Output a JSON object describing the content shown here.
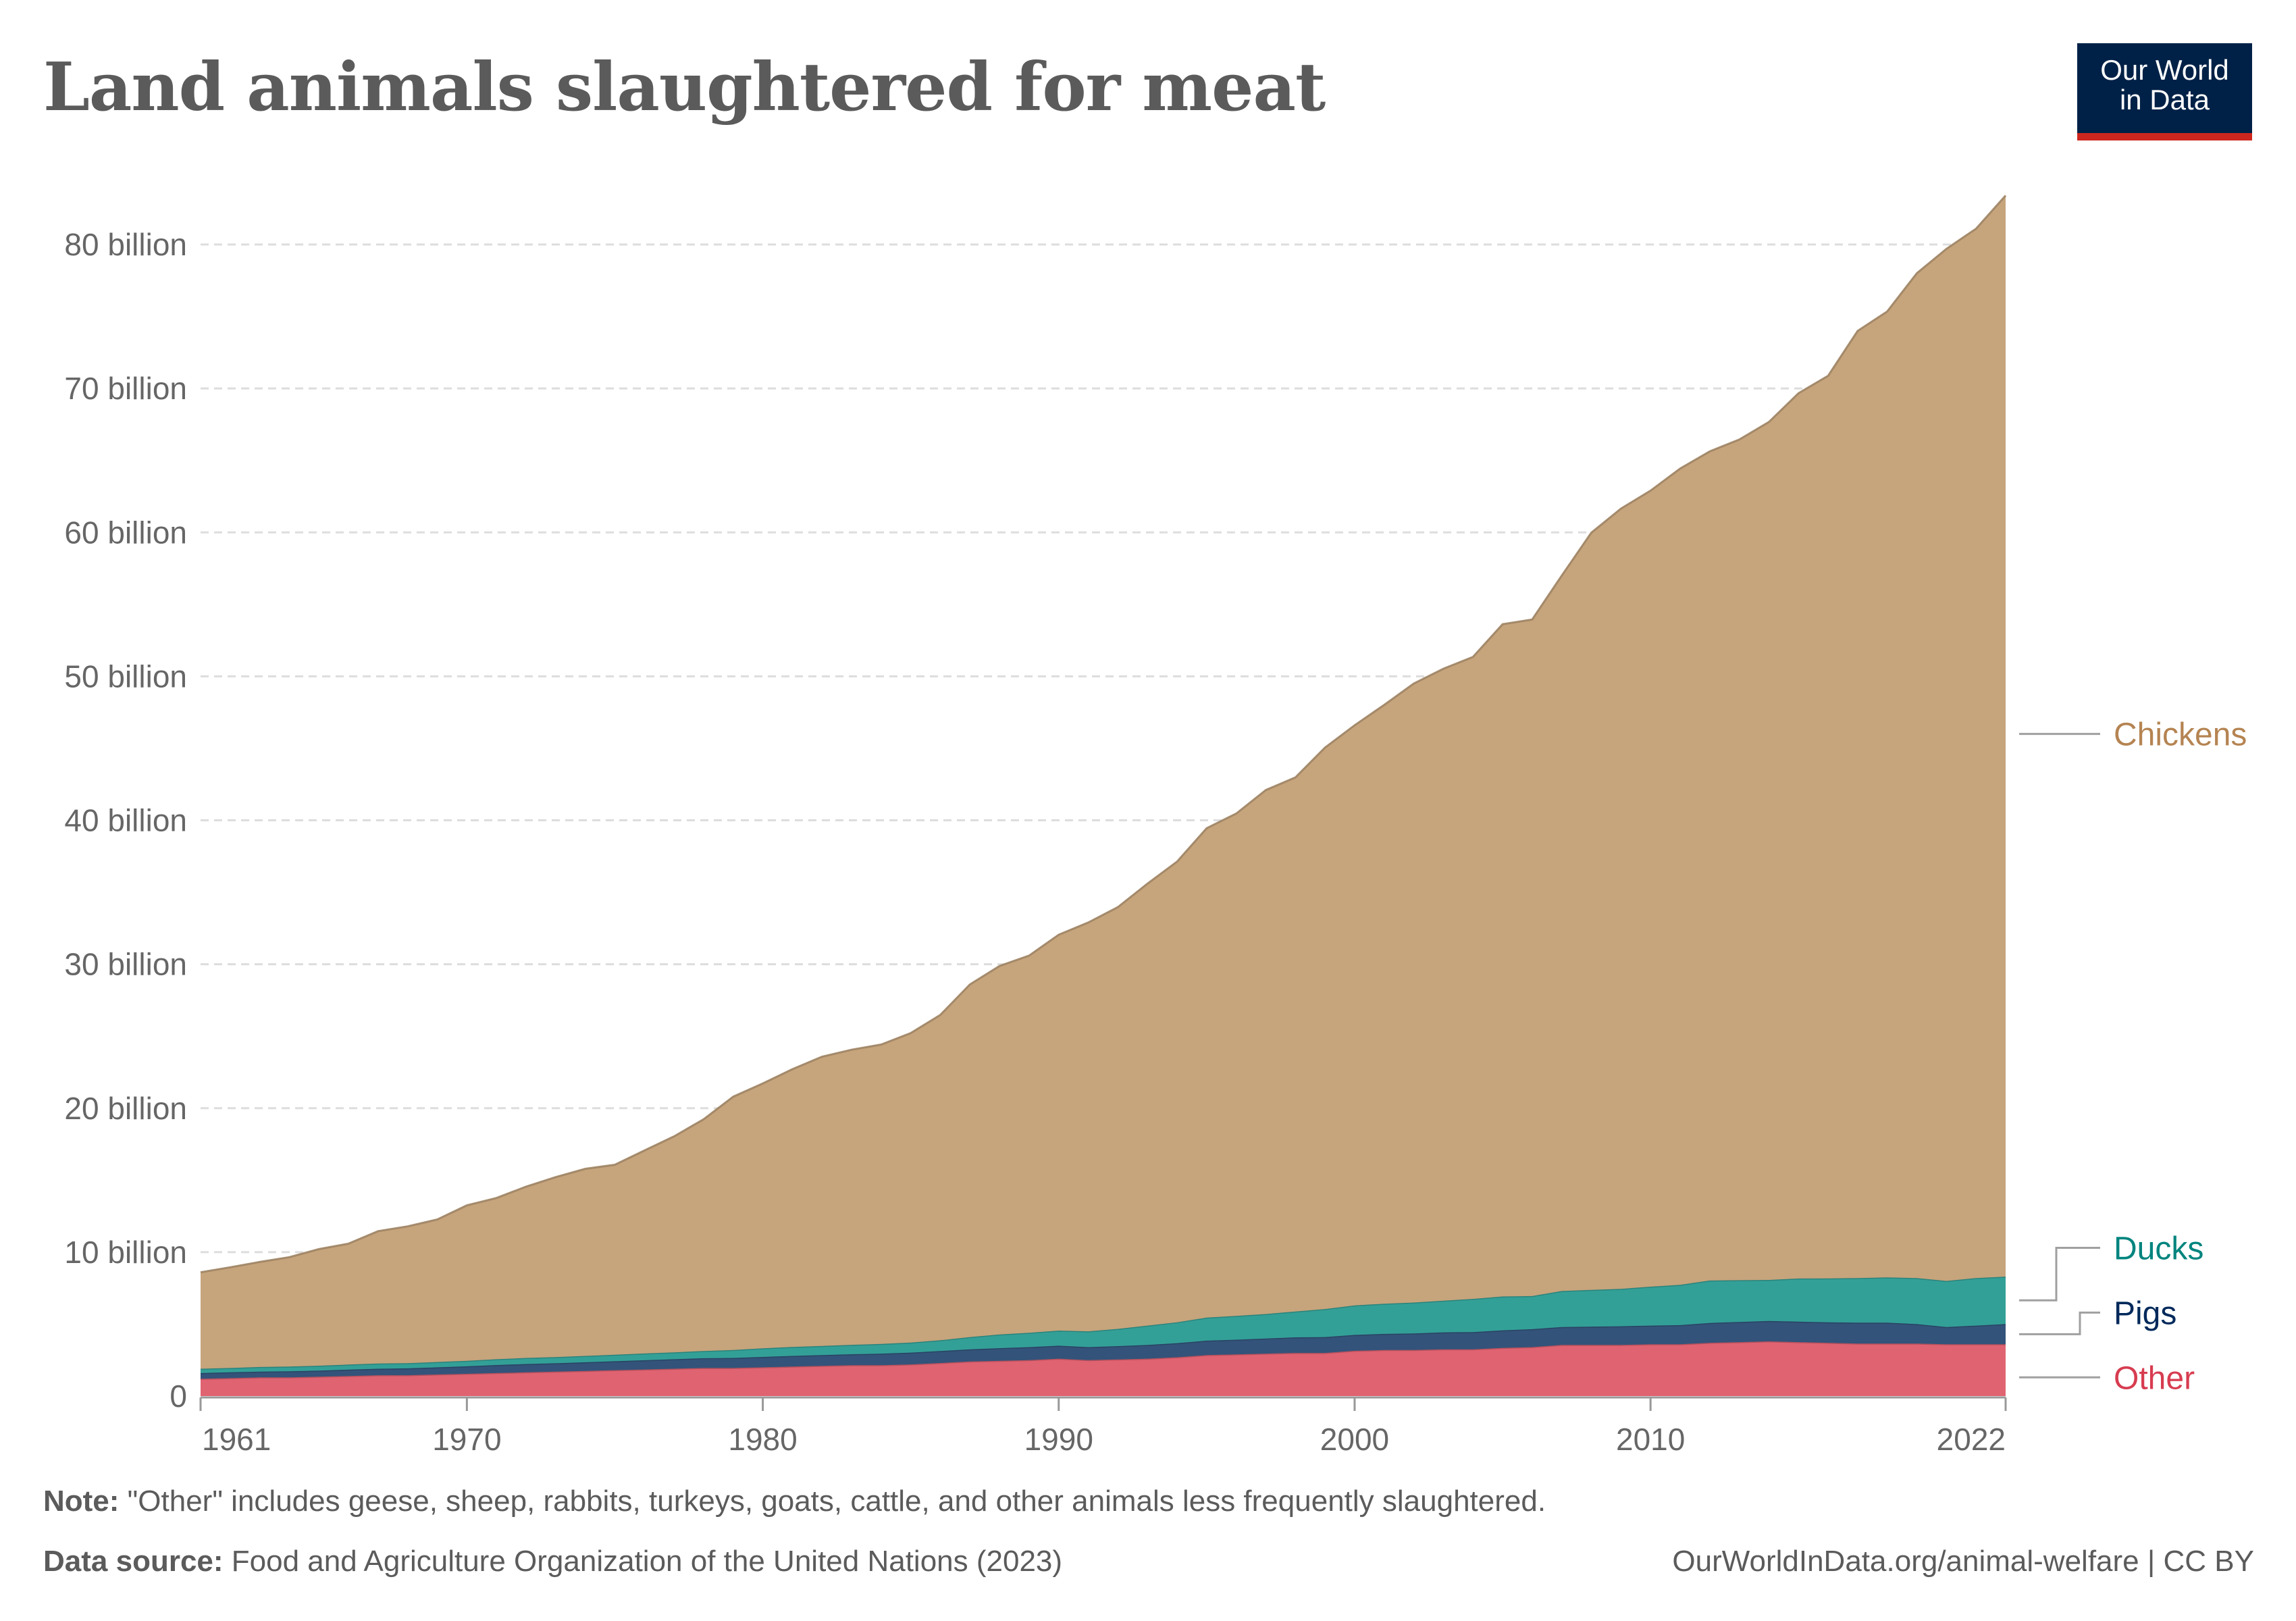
{
  "title": "Land animals slaughtered for meat",
  "logo": {
    "line1": "Our World",
    "line2": "in Data",
    "bg_color": "#002147",
    "accent_color": "#ce261e"
  },
  "footer": {
    "note_label": "Note:",
    "note_text": " \"Other\" includes geese, sheep, rabbits, turkeys, goats, cattle, and other animals less frequently slaughtered.",
    "source_label": "Data source:",
    "source_text": " Food and Agriculture Organization of the United Nations (2023)",
    "url": "OurWorldInData.org/animal-welfare | CC BY"
  },
  "chart_data": {
    "type": "area",
    "stacked": true,
    "title": "Land animals slaughtered for meat",
    "xlabel": "",
    "ylabel": "",
    "x_range": [
      1961,
      2022
    ],
    "ylim": [
      0,
      80000000000
    ],
    "y_ticks": [
      {
        "value": 0,
        "label": "0"
      },
      {
        "value": 10,
        "label": "10 billion"
      },
      {
        "value": 20,
        "label": "20 billion"
      },
      {
        "value": 30,
        "label": "30 billion"
      },
      {
        "value": 40,
        "label": "40 billion"
      },
      {
        "value": 50,
        "label": "50 billion"
      },
      {
        "value": 60,
        "label": "60 billion"
      },
      {
        "value": 70,
        "label": "70 billion"
      },
      {
        "value": 80,
        "label": "80 billion"
      }
    ],
    "y_unit": "billion",
    "x_ticks": [
      1961,
      1970,
      1980,
      1990,
      2000,
      2010,
      2022
    ],
    "grid": "horizontal-dashed",
    "legend": "right-inline",
    "years": [
      1961,
      1962,
      1963,
      1964,
      1965,
      1966,
      1967,
      1968,
      1969,
      1970,
      1971,
      1972,
      1973,
      1974,
      1975,
      1976,
      1977,
      1978,
      1979,
      1980,
      1981,
      1982,
      1983,
      1984,
      1985,
      1986,
      1987,
      1988,
      1989,
      1990,
      1991,
      1992,
      1993,
      1994,
      1995,
      1996,
      1997,
      1998,
      1999,
      2000,
      2001,
      2002,
      2003,
      2004,
      2005,
      2006,
      2007,
      2008,
      2009,
      2010,
      2011,
      2012,
      2013,
      2014,
      2015,
      2016,
      2017,
      2018,
      2019,
      2020,
      2021,
      2022
    ],
    "series": [
      {
        "name": "Other",
        "color": "#e06371",
        "label_color": "#d73c50",
        "values": [
          1.2,
          1.25,
          1.3,
          1.3,
          1.35,
          1.4,
          1.45,
          1.45,
          1.5,
          1.55,
          1.6,
          1.65,
          1.7,
          1.75,
          1.8,
          1.85,
          1.9,
          1.95,
          1.95,
          2.0,
          2.05,
          2.1,
          2.15,
          2.15,
          2.2,
          2.3,
          2.4,
          2.45,
          2.5,
          2.6,
          2.5,
          2.55,
          2.6,
          2.7,
          2.85,
          2.9,
          2.95,
          3.0,
          3.0,
          3.15,
          3.2,
          3.2,
          3.25,
          3.25,
          3.35,
          3.4,
          3.55,
          3.55,
          3.55,
          3.6,
          3.6,
          3.7,
          3.75,
          3.8,
          3.75,
          3.7,
          3.65,
          3.65,
          3.65,
          3.6,
          3.6,
          3.6
        ]
      },
      {
        "name": "Pigs",
        "color": "#33537a",
        "label_color": "#00295b",
        "values": [
          0.4,
          0.4,
          0.4,
          0.42,
          0.42,
          0.44,
          0.45,
          0.48,
          0.5,
          0.52,
          0.56,
          0.58,
          0.58,
          0.6,
          0.62,
          0.64,
          0.66,
          0.68,
          0.7,
          0.72,
          0.74,
          0.75,
          0.76,
          0.8,
          0.82,
          0.83,
          0.85,
          0.88,
          0.9,
          0.9,
          0.9,
          0.92,
          0.95,
          0.98,
          1.0,
          1.02,
          1.05,
          1.08,
          1.1,
          1.1,
          1.12,
          1.15,
          1.18,
          1.2,
          1.22,
          1.25,
          1.25,
          1.28,
          1.3,
          1.3,
          1.33,
          1.38,
          1.4,
          1.42,
          1.42,
          1.43,
          1.45,
          1.45,
          1.35,
          1.2,
          1.3,
          1.4
        ]
      },
      {
        "name": "Ducks",
        "color": "#33a097",
        "label_color": "#00847e",
        "values": [
          0.3,
          0.3,
          0.32,
          0.33,
          0.34,
          0.35,
          0.36,
          0.36,
          0.37,
          0.38,
          0.4,
          0.42,
          0.43,
          0.44,
          0.45,
          0.47,
          0.48,
          0.5,
          0.55,
          0.6,
          0.62,
          0.63,
          0.65,
          0.67,
          0.7,
          0.75,
          0.85,
          0.95,
          1.0,
          1.05,
          1.1,
          1.2,
          1.35,
          1.45,
          1.6,
          1.65,
          1.7,
          1.8,
          1.95,
          2.05,
          2.1,
          2.15,
          2.2,
          2.3,
          2.35,
          2.3,
          2.5,
          2.55,
          2.6,
          2.7,
          2.8,
          2.95,
          2.9,
          2.85,
          3.0,
          3.05,
          3.1,
          3.15,
          3.2,
          3.2,
          3.3,
          3.3
        ]
      },
      {
        "name": "Chickens",
        "color": "#c6a47c",
        "label_color": "#b58452",
        "values": [
          6.7,
          7.0,
          7.3,
          7.6,
          8.1,
          8.4,
          9.2,
          9.5,
          9.9,
          10.8,
          11.2,
          11.9,
          12.5,
          13.0,
          13.2,
          14.1,
          15.0,
          16.1,
          17.6,
          18.4,
          19.3,
          20.1,
          20.5,
          20.8,
          21.5,
          22.6,
          24.5,
          25.6,
          26.2,
          27.5,
          28.4,
          29.3,
          30.7,
          32.0,
          34.0,
          34.9,
          36.4,
          37.1,
          39.0,
          40.3,
          41.6,
          43.0,
          43.9,
          44.6,
          46.7,
          47.0,
          49.7,
          52.6,
          54.2,
          55.3,
          56.7,
          57.6,
          58.4,
          59.6,
          61.5,
          62.7,
          65.8,
          67.1,
          69.8,
          71.7,
          72.9,
          75.1
        ]
      }
    ]
  }
}
